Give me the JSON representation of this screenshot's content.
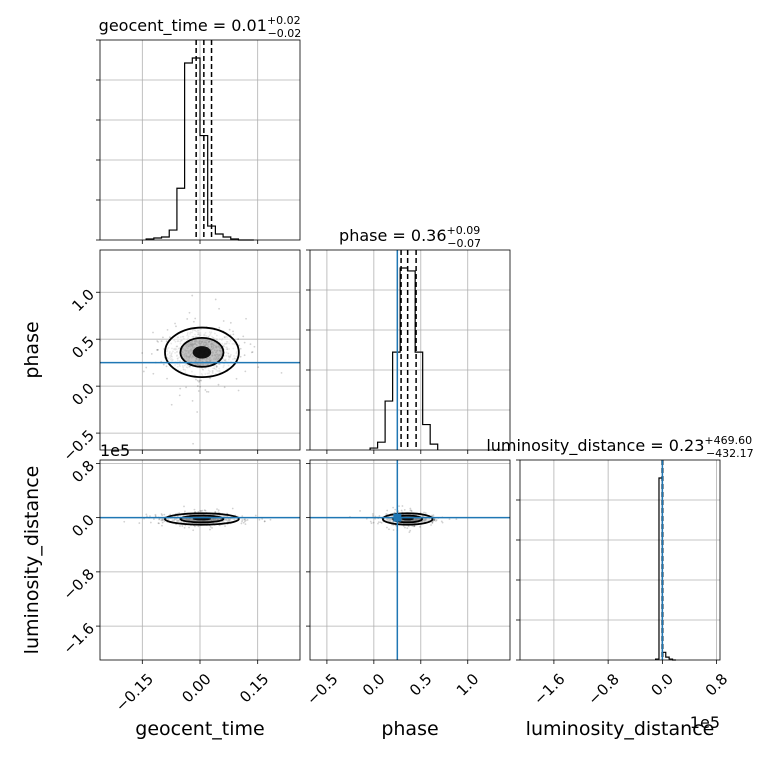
{
  "chart_data": {
    "type": "corner",
    "parameters": [
      "geocent_time",
      "phase",
      "luminosity_distance"
    ],
    "axis_labels": [
      "geocent_time",
      "phase",
      "luminosity_distance"
    ],
    "truths": {
      "phase": 0.25,
      "luminosity_distance": 0.0
    },
    "titles": [
      {
        "param": "geocent_time",
        "base": "geocent_time = 0.01",
        "sup": "+0.02",
        "sub": "−0.02"
      },
      {
        "param": "phase",
        "base": "phase = 0.36",
        "sup": "+0.09",
        "sub": "−0.07"
      },
      {
        "param": "luminosity_distance",
        "base": "luminosity_distance = 0.23",
        "sup": "+469.60",
        "sub": "−432.17"
      }
    ],
    "ranges": {
      "geocent_time": [
        -0.26,
        0.26
      ],
      "phase": [
        -0.68,
        1.45
      ],
      "luminosity_distance": [
        -2.1,
        0.85
      ]
    },
    "ticks": {
      "geocent_time": {
        "values": [
          -0.15,
          0.0,
          0.15
        ],
        "labels": [
          "−0.15",
          "0.00",
          "0.15"
        ]
      },
      "phase": {
        "values": [
          -0.5,
          0.0,
          0.5,
          1.0
        ],
        "labels": [
          "−0.5",
          "0.0",
          "0.5",
          "1.0"
        ]
      },
      "luminosity_distance": {
        "values": [
          -1.6,
          -0.8,
          0.0,
          0.8
        ],
        "labels": [
          "−1.6",
          "−0.8",
          "0.0",
          "0.8"
        ]
      }
    },
    "scale_offset": {
      "luminosity_distance": "1e5"
    },
    "quantile_lines": {
      "geocent_time": [
        -0.01,
        0.01,
        0.03
      ],
      "phase": [
        0.29,
        0.36,
        0.45
      ],
      "luminosity_distance": [
        -0.004,
        0.0,
        0.005
      ]
    },
    "histograms": {
      "geocent_time": {
        "edges": [
          -0.14,
          -0.12,
          -0.1,
          -0.08,
          -0.06,
          -0.04,
          -0.02,
          0.0,
          0.02,
          0.04,
          0.06,
          0.08,
          0.1,
          0.12,
          0.14
        ],
        "counts": [
          1,
          2,
          3,
          10,
          52,
          178,
          183,
          105,
          14,
          6,
          3,
          1,
          0,
          0
        ]
      },
      "phase": {
        "edges": [
          -0.04,
          0.04,
          0.12,
          0.2,
          0.28,
          0.36,
          0.44,
          0.52,
          0.6,
          0.68
        ],
        "counts": [
          2,
          8,
          50,
          100,
          186,
          183,
          100,
          26,
          6
        ]
      },
      "luminosity_distance": {
        "edges": [
          -0.1,
          -0.05,
          0.0,
          0.05,
          0.1,
          0.15,
          0.2
        ],
        "counts": [
          1,
          190,
          8,
          3,
          1,
          0
        ]
      }
    },
    "grid": true
  }
}
